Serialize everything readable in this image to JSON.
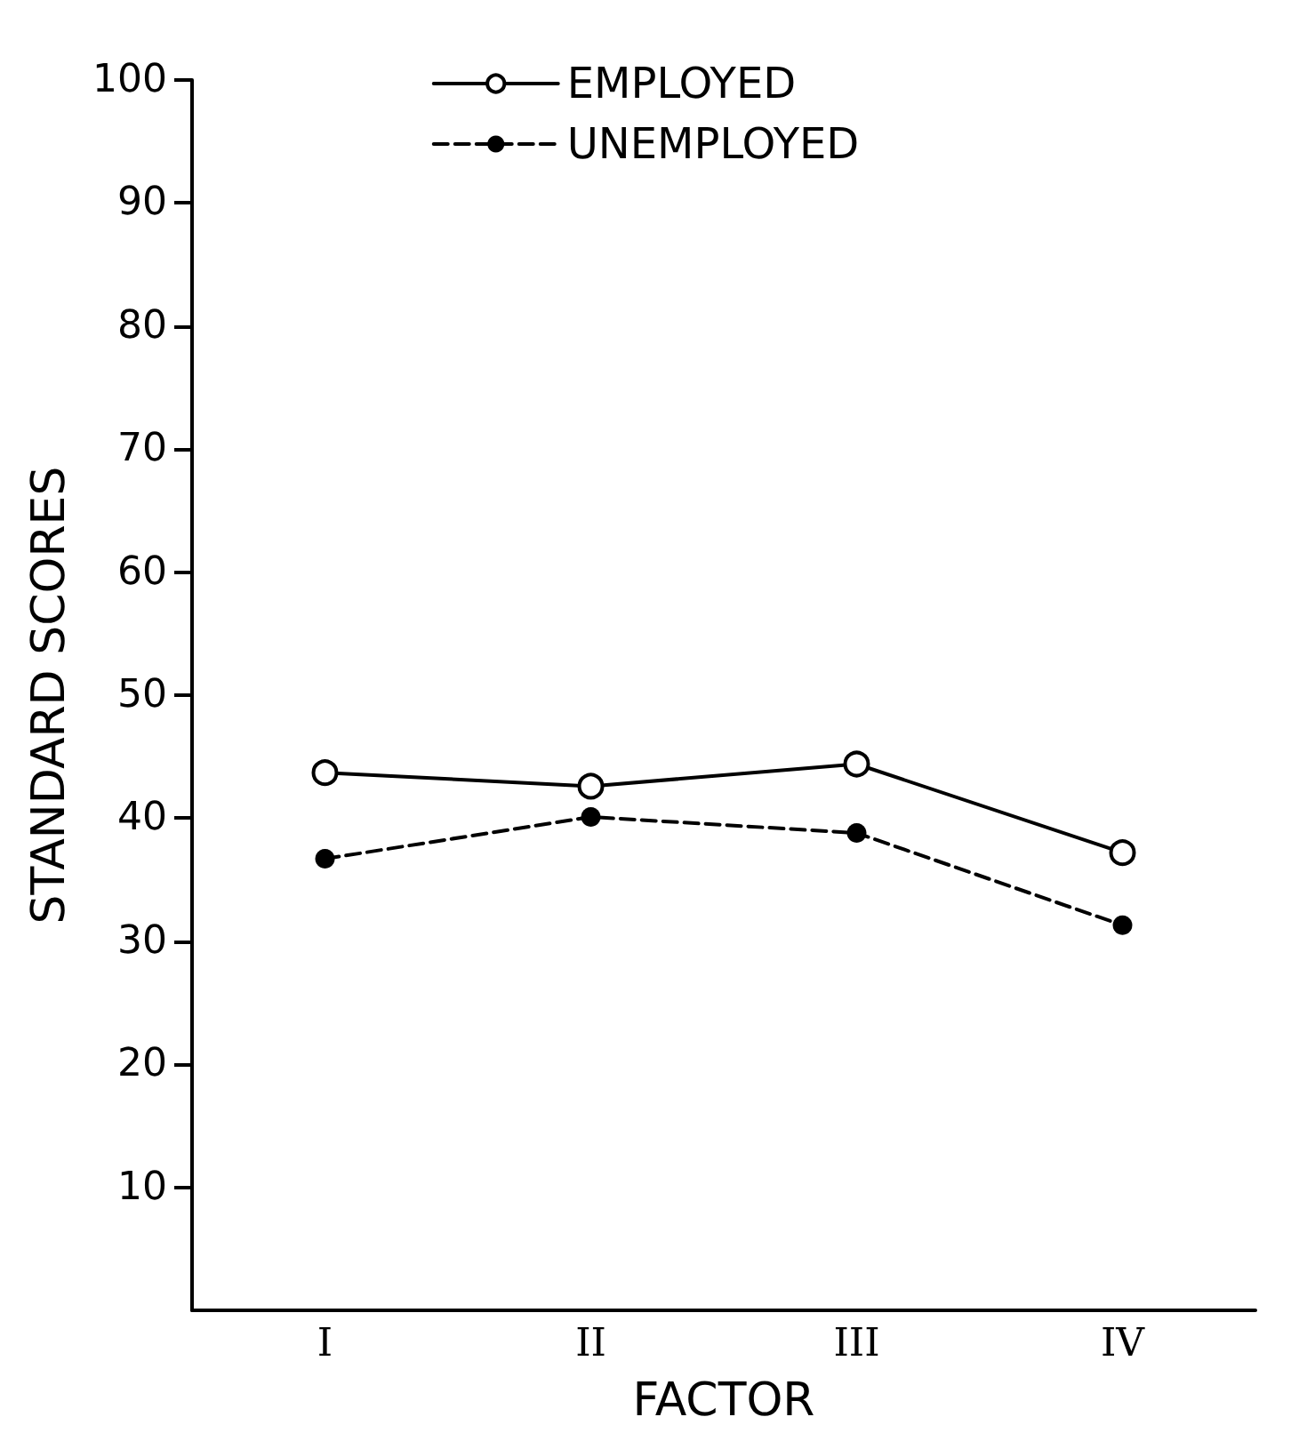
{
  "chart_data": {
    "type": "line",
    "xlabel": "FACTOR",
    "ylabel": "STANDARD SCORES",
    "categories": [
      "I",
      "II",
      "III",
      "IV"
    ],
    "series": [
      {
        "name": "EMPLOYED",
        "color": "#000000",
        "values": [
          43.7,
          42.6,
          44.4,
          37.2
        ],
        "line_style": "solid",
        "marker": "circle"
      },
      {
        "name": "UNEMPLOYED",
        "color": "#000000",
        "values": [
          36.7,
          40.1,
          38.8,
          31.3
        ],
        "line_style": "dashed",
        "marker": "circle"
      }
    ],
    "ylim": [
      0,
      100
    ],
    "yticks": [
      10,
      20,
      30,
      40,
      50,
      60,
      70,
      80,
      90,
      100
    ],
    "grid": false,
    "legend": "top"
  }
}
